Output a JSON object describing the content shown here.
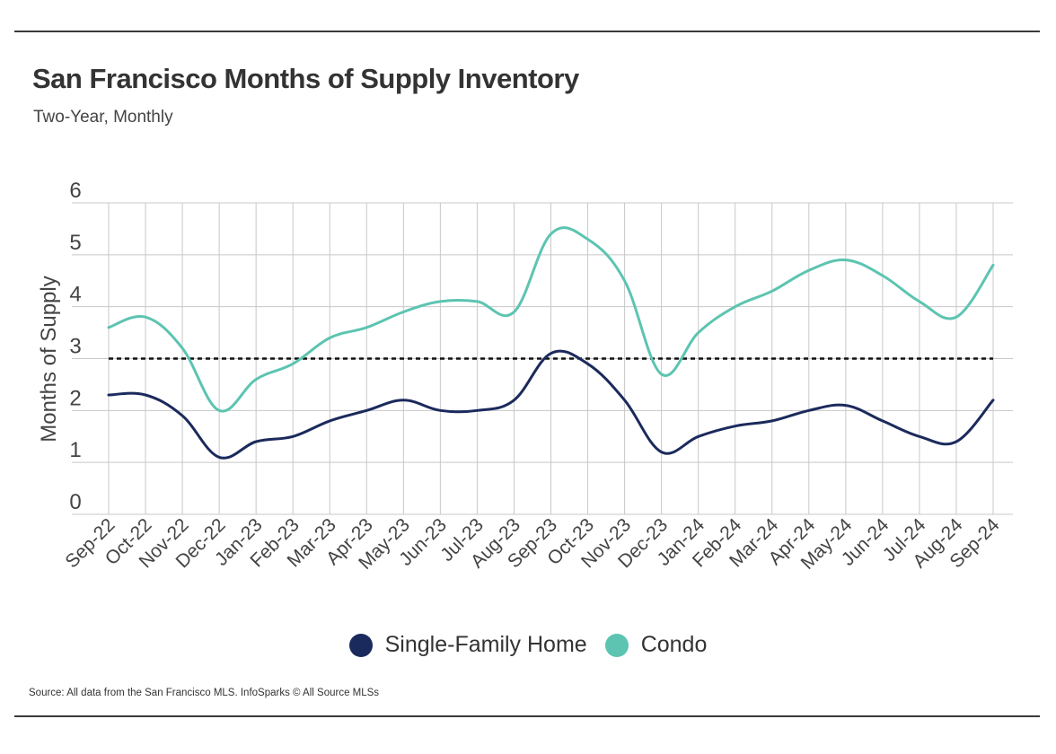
{
  "header": {
    "title": "San Francisco Months of Supply Inventory",
    "subtitle": "Two-Year, Monthly"
  },
  "footer": {
    "source": "Source:  All data from the San Francisco MLS. InfoSparks © All Source MLSs"
  },
  "colors": {
    "single_family": "#1b2a5c",
    "condo": "#5cc4b1",
    "grid": "#c8c8c8",
    "reference_line": "#111111"
  },
  "chart_data": {
    "type": "line",
    "title": "San Francisco Months of Supply Inventory",
    "subtitle": "Two-Year, Monthly",
    "xlabel": "",
    "ylabel": "Months of Supply",
    "ylim": [
      0,
      6
    ],
    "yticks": [
      0,
      1,
      2,
      3,
      4,
      5,
      6
    ],
    "grid": true,
    "legend_position": "bottom-center",
    "reference_line": {
      "y": 3,
      "style": "dashed"
    },
    "categories": [
      "Sep-22",
      "Oct-22",
      "Nov-22",
      "Dec-22",
      "Jan-23",
      "Feb-23",
      "Mar-23",
      "Apr-23",
      "May-23",
      "Jun-23",
      "Jul-23",
      "Aug-23",
      "Sep-23",
      "Oct-23",
      "Nov-23",
      "Dec-23",
      "Jan-24",
      "Feb-24",
      "Mar-24",
      "Apr-24",
      "May-24",
      "Jun-24",
      "Jul-24",
      "Aug-24",
      "Sep-24"
    ],
    "series": [
      {
        "name": "Single-Family Home",
        "color": "#1b2a5c",
        "values": [
          2.3,
          2.3,
          1.9,
          1.1,
          1.4,
          1.5,
          1.8,
          2.0,
          2.2,
          2.0,
          2.0,
          2.2,
          3.1,
          2.9,
          2.2,
          1.2,
          1.5,
          1.7,
          1.8,
          2.0,
          2.1,
          1.8,
          1.5,
          1.4,
          2.2
        ]
      },
      {
        "name": "Condo",
        "color": "#5cc4b1",
        "values": [
          3.6,
          3.8,
          3.2,
          2.0,
          2.6,
          2.9,
          3.4,
          3.6,
          3.9,
          4.1,
          4.1,
          3.9,
          5.4,
          5.3,
          4.5,
          2.7,
          3.5,
          4.0,
          4.3,
          4.7,
          4.9,
          4.6,
          4.1,
          3.8,
          4.8
        ]
      }
    ]
  }
}
